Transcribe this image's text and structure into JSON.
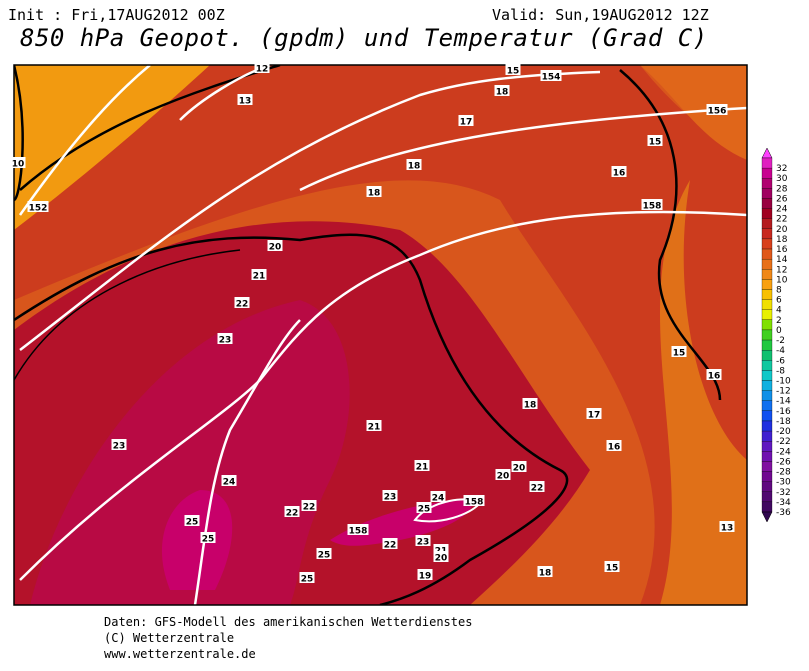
{
  "header": {
    "init": "Init : Fri,17AUG2012 00Z",
    "valid": "Valid: Sun,19AUG2012 12Z",
    "title": "850 hPa Geopot. (gpdm) und Temperatur (Grad C)"
  },
  "legend": {
    "labels": [
      "32",
      "30",
      "28",
      "26",
      "24",
      "22",
      "20",
      "18",
      "16",
      "14",
      "12",
      "10",
      "8",
      "6",
      "4",
      "2",
      "0",
      "-2",
      "-4",
      "-6",
      "-8",
      "-10",
      "-12",
      "-14",
      "-16",
      "-18",
      "-20",
      "-22",
      "-24",
      "-26",
      "-28",
      "-30",
      "-32",
      "-34",
      "-36"
    ]
  },
  "map": {
    "labels": [
      "12",
      "15",
      "154",
      "13",
      "18",
      "156",
      "17",
      "15",
      "10",
      "18",
      "16",
      "152",
      "18",
      "158",
      "20",
      "21",
      "22",
      "23",
      "15",
      "16",
      "18",
      "17",
      "21",
      "16",
      "23",
      "21",
      "20",
      "20",
      "24",
      "22",
      "23",
      "24",
      "158",
      "25",
      "22",
      "22",
      "25",
      "158",
      "25",
      "23",
      "22",
      "21",
      "20",
      "25",
      "19",
      "18",
      "15",
      "13",
      "25"
    ]
  },
  "footer": {
    "lines": [
      "Daten: GFS-Modell des amerikanischen Wetterdienstes",
      "(C) Wetterzentrale",
      "www.wetterzentrale.de"
    ]
  }
}
